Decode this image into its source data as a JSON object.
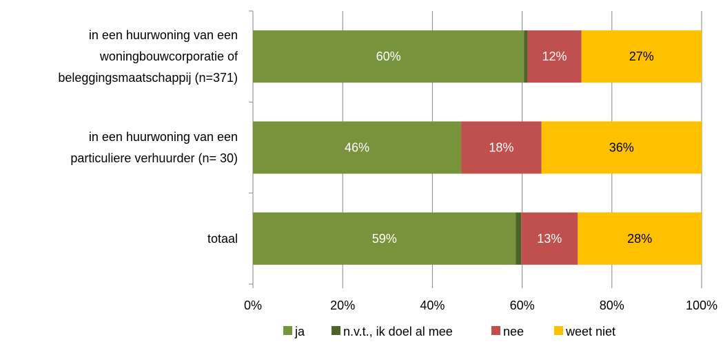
{
  "chart_data": {
    "type": "bar",
    "orientation": "horizontal",
    "stacked": "percent",
    "categories": [
      [
        "in een huurwoning van een",
        "woningbouwcorporatie of",
        "beleggingsmaatschappij (n=371)"
      ],
      [
        "in een huurwoning van een",
        "particuliere verhuurder (n= 30)"
      ],
      [
        "totaal"
      ]
    ],
    "series": [
      {
        "name": "ja",
        "color": "#77933C",
        "label_color": "#FFFFFF",
        "values": [
          60.4,
          46.4,
          58.6
        ],
        "labels": [
          "60%",
          "46%",
          "59%"
        ]
      },
      {
        "name": "n.v.t., ik doel al mee",
        "color": "#4F6228",
        "label_color": "#FFFFFF",
        "values": [
          0.8,
          0,
          1.2
        ],
        "labels": [
          "",
          "",
          ""
        ]
      },
      {
        "name": "nee",
        "color": "#C0504D",
        "label_color": "#FFFFFF",
        "values": [
          12.0,
          17.9,
          12.6
        ],
        "labels": [
          "12%",
          "18%",
          "13%"
        ]
      },
      {
        "name": "weet niet",
        "color": "#FFC000",
        "label_color": "#000000",
        "values": [
          26.8,
          35.7,
          27.6
        ],
        "labels": [
          "27%",
          "36%",
          "28%"
        ]
      }
    ],
    "xlim": [
      0,
      100
    ],
    "xticks": [
      "0%",
      "20%",
      "40%",
      "60%",
      "80%",
      "100%"
    ],
    "grid": true,
    "legend_position": "bottom",
    "title": "",
    "xlabel": "",
    "ylabel": ""
  }
}
